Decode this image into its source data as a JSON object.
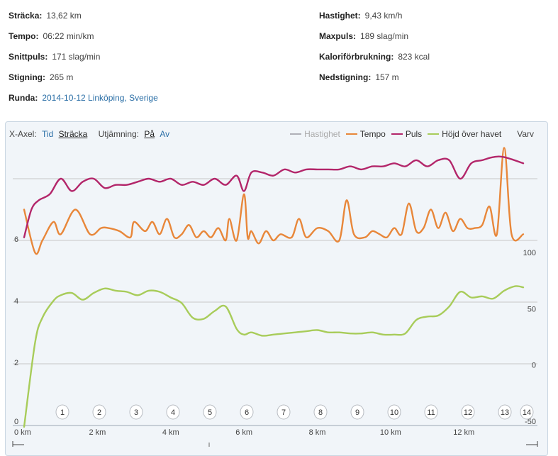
{
  "stats": {
    "distance": {
      "label": "Sträcka:",
      "value": "13,62 km"
    },
    "pace": {
      "label": "Tempo:",
      "value": "06:22 min/km"
    },
    "avg_hr": {
      "label": "Snittpuls:",
      "value": "171 slag/min"
    },
    "ascent": {
      "label": "Stigning:",
      "value": "265 m"
    },
    "route": {
      "label": "Runda:",
      "value": "2014-10-12 Linköping, Sverige"
    },
    "speed": {
      "label": "Hastighet:",
      "value": "9,43 km/h"
    },
    "max_hr": {
      "label": "Maxpuls:",
      "value": "189 slag/min"
    },
    "calories": {
      "label": "Kaloriförbrukning:",
      "value": "823 kcal"
    },
    "descent": {
      "label": "Nedstigning:",
      "value": "157 m"
    }
  },
  "toolbar": {
    "xaxis_label": "X-Axel:",
    "xaxis_time": "Tid",
    "xaxis_distance": "Sträcka",
    "smoothing_label": "Utjämning:",
    "smoothing_on": "På",
    "smoothing_off": "Av"
  },
  "legend": {
    "speed": "Hastighet",
    "pace": "Tempo",
    "hr": "Puls",
    "altitude": "Höjd över havet",
    "laps": "Varv"
  },
  "colors": {
    "speed": "#b0b0b8",
    "pace": "#e8873a",
    "hr": "#b3266a",
    "altitude": "#a8cc5a",
    "grid": "#c8c8c8"
  },
  "chart_data": {
    "type": "line",
    "x_unit": "km",
    "xlim": [
      0,
      13.62
    ],
    "x_ticks": [
      "0 km",
      "2 km",
      "4 km",
      "6 km",
      "8 km",
      "10 km",
      "12 km"
    ],
    "left_axis_ticks": [
      "0",
      "2",
      "4",
      "6"
    ],
    "ylim_left": [
      0,
      8
    ],
    "right_axis_ticks": [
      "-50",
      "0",
      "50",
      "100"
    ],
    "ylim_right": [
      -50,
      100
    ],
    "laps": [
      "1",
      "2",
      "3",
      "4",
      "5",
      "6",
      "7",
      "8",
      "9",
      "10",
      "11",
      "12",
      "13",
      "14"
    ],
    "series": [
      {
        "name": "Tempo",
        "key": "pace",
        "axis": "left",
        "x": [
          0,
          0.3,
          0.5,
          0.8,
          1.0,
          1.4,
          1.8,
          2.1,
          2.3,
          2.6,
          2.9,
          3.0,
          3.3,
          3.5,
          3.7,
          3.9,
          4.1,
          4.3,
          4.5,
          4.7,
          4.9,
          5.1,
          5.3,
          5.5,
          5.6,
          5.8,
          6.0,
          6.1,
          6.2,
          6.4,
          6.6,
          6.8,
          7.0,
          7.3,
          7.5,
          7.7,
          8.0,
          8.3,
          8.6,
          8.8,
          9.0,
          9.3,
          9.5,
          9.7,
          9.9,
          10.1,
          10.3,
          10.5,
          10.7,
          10.9,
          11.1,
          11.3,
          11.5,
          11.7,
          11.9,
          12.1,
          12.3,
          12.5,
          12.7,
          12.9,
          13.1,
          13.3,
          13.62
        ],
        "values": [
          7.0,
          5.6,
          6.0,
          6.6,
          6.2,
          7.0,
          6.2,
          6.4,
          6.4,
          6.3,
          6.1,
          6.6,
          6.3,
          6.6,
          6.2,
          6.7,
          6.1,
          6.2,
          6.5,
          6.1,
          6.3,
          6.1,
          6.4,
          6.0,
          6.7,
          6.0,
          7.5,
          6.1,
          6.3,
          5.9,
          6.3,
          6.0,
          6.2,
          6.1,
          6.7,
          6.1,
          6.4,
          6.3,
          6.0,
          7.3,
          6.2,
          6.1,
          6.3,
          6.2,
          6.1,
          6.4,
          6.2,
          7.2,
          6.3,
          6.4,
          7.0,
          6.4,
          6.9,
          6.3,
          6.7,
          6.4,
          6.4,
          6.5,
          7.1,
          6.2,
          9.0,
          6.2,
          6.2
        ]
      },
      {
        "name": "Puls",
        "key": "hr",
        "axis": "left",
        "x": [
          0,
          0.2,
          0.4,
          0.7,
          1.0,
          1.3,
          1.6,
          1.9,
          2.2,
          2.5,
          2.8,
          3.1,
          3.4,
          3.7,
          4.0,
          4.3,
          4.6,
          4.9,
          5.2,
          5.5,
          5.8,
          6.0,
          6.2,
          6.5,
          6.8,
          7.1,
          7.4,
          7.7,
          8.0,
          8.3,
          8.6,
          8.9,
          9.2,
          9.5,
          9.8,
          10.1,
          10.4,
          10.7,
          11.0,
          11.3,
          11.6,
          11.9,
          12.2,
          12.5,
          12.8,
          13.1,
          13.62
        ],
        "values": [
          6.1,
          7.0,
          7.3,
          7.5,
          8.0,
          7.6,
          7.9,
          8.0,
          7.7,
          7.8,
          7.8,
          7.9,
          8.0,
          7.9,
          8.0,
          7.8,
          7.9,
          7.8,
          8.0,
          7.8,
          8.1,
          7.6,
          8.2,
          8.2,
          8.1,
          8.3,
          8.2,
          8.3,
          8.3,
          8.3,
          8.3,
          8.4,
          8.3,
          8.4,
          8.4,
          8.5,
          8.4,
          8.6,
          8.4,
          8.6,
          8.6,
          8.0,
          8.5,
          8.6,
          8.7,
          8.7,
          8.5
        ]
      },
      {
        "name": "Höjd över havet",
        "key": "altitude",
        "axis": "right",
        "x": [
          0,
          0.3,
          0.5,
          0.8,
          1.0,
          1.3,
          1.6,
          1.9,
          2.2,
          2.5,
          2.8,
          3.1,
          3.4,
          3.7,
          4.0,
          4.3,
          4.6,
          4.9,
          5.2,
          5.5,
          5.8,
          6.0,
          6.2,
          6.5,
          6.8,
          7.1,
          7.4,
          7.7,
          8.0,
          8.3,
          8.6,
          8.9,
          9.2,
          9.5,
          9.8,
          10.1,
          10.4,
          10.7,
          11.0,
          11.3,
          11.6,
          11.9,
          12.2,
          12.5,
          12.8,
          13.1,
          13.4,
          13.62
        ],
        "values": [
          -55,
          20,
          42,
          57,
          62,
          64,
          58,
          64,
          68,
          66,
          65,
          62,
          66,
          65,
          60,
          55,
          42,
          41,
          48,
          52,
          32,
          27,
          29,
          26,
          27,
          28,
          29,
          30,
          31,
          29,
          29,
          28,
          28,
          29,
          27,
          27,
          28,
          40,
          43,
          44,
          52,
          65,
          60,
          61,
          59,
          66,
          70,
          69
        ]
      }
    ]
  }
}
